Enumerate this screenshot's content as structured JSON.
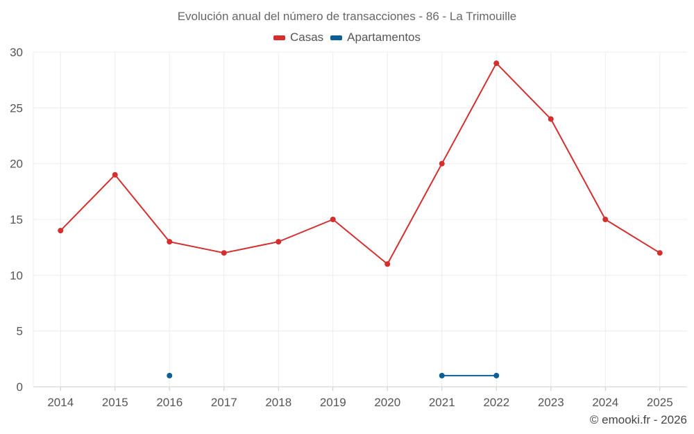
{
  "chart_data": {
    "type": "line",
    "title": "Evolución anual del número de transacciones - 86 - La Trimouille",
    "categories": [
      "2014",
      "2015",
      "2016",
      "2017",
      "2018",
      "2019",
      "2020",
      "2021",
      "2022",
      "2023",
      "2024",
      "2025"
    ],
    "series": [
      {
        "name": "Casas",
        "color": "#d32f2f",
        "values": [
          14,
          19,
          13,
          12,
          13,
          15,
          11,
          20,
          29,
          24,
          15,
          12
        ]
      },
      {
        "name": "Apartamentos",
        "color": "#0a5f96",
        "values": [
          null,
          null,
          1,
          null,
          null,
          null,
          null,
          1,
          1,
          null,
          null,
          null
        ]
      }
    ],
    "ylim": [
      0,
      30
    ],
    "yticks": [
      0,
      5,
      10,
      15,
      20,
      25,
      30
    ],
    "xlabel": "",
    "ylabel": "",
    "legend": "top-center",
    "grid": true
  },
  "credit": "© emooki.fr - 2026"
}
